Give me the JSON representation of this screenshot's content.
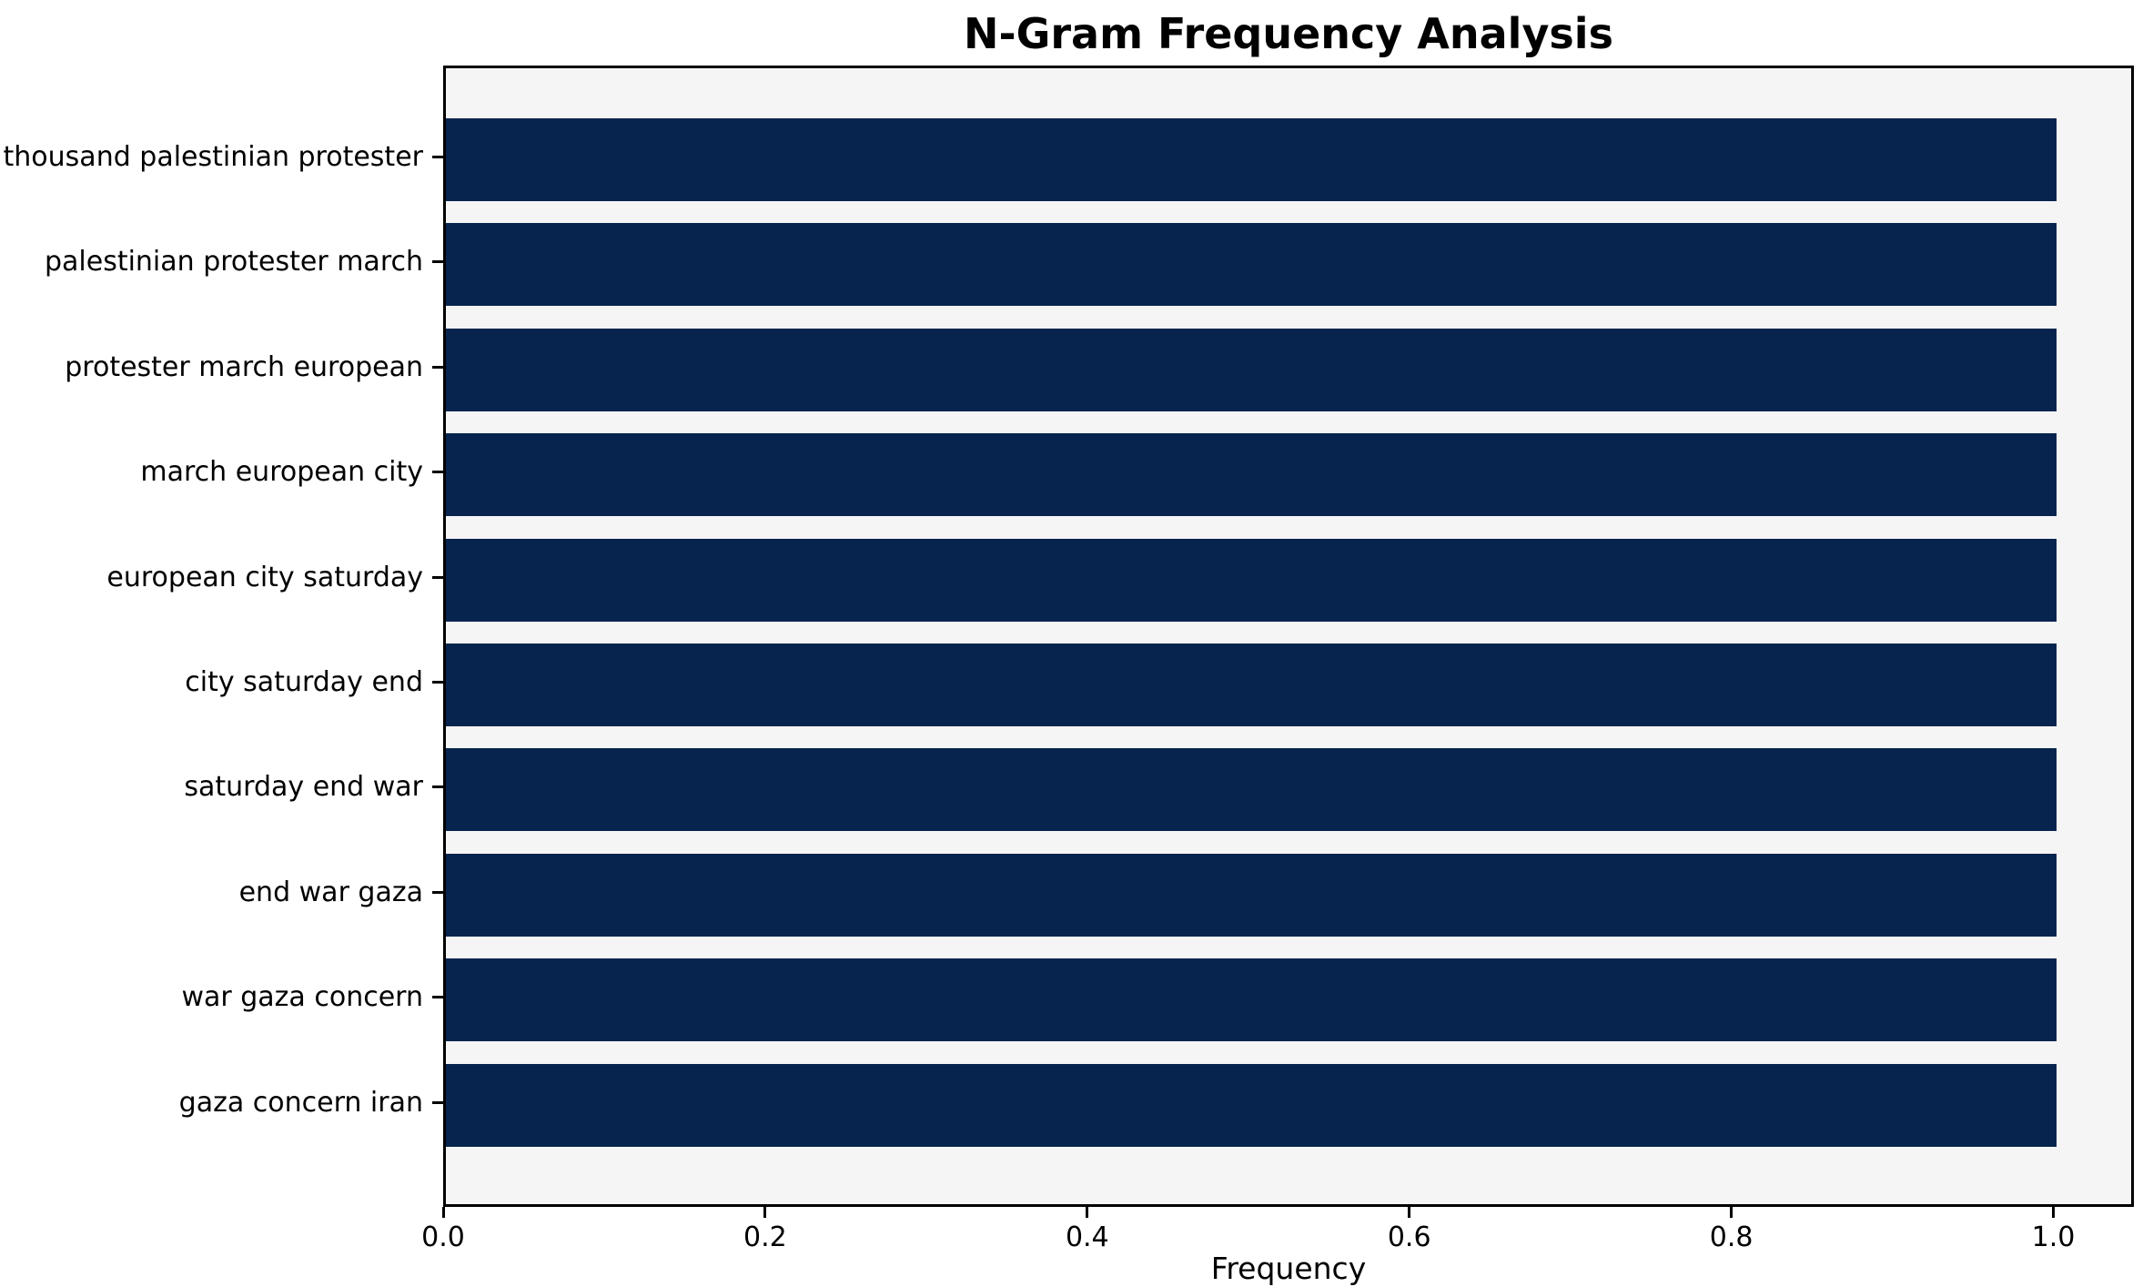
{
  "chart_data": {
    "type": "bar",
    "orientation": "horizontal",
    "title": "N-Gram Frequency Analysis",
    "xlabel": "Frequency",
    "ylabel": "",
    "categories": [
      "thousand palestinian protester",
      "palestinian protester march",
      "protester march european",
      "march european city",
      "european city saturday",
      "city saturday end",
      "saturday end war",
      "end war gaza",
      "war gaza concern",
      "gaza concern iran"
    ],
    "values": [
      1.0,
      1.0,
      1.0,
      1.0,
      1.0,
      1.0,
      1.0,
      1.0,
      1.0,
      1.0
    ],
    "xlim": [
      0,
      1.05
    ],
    "xticks": [
      "0.0",
      "0.2",
      "0.4",
      "0.6",
      "0.8",
      "1.0"
    ],
    "xtick_values": [
      0.0,
      0.2,
      0.4,
      0.6,
      0.8,
      1.0
    ],
    "grid": false,
    "legend": null,
    "colors": {
      "bar": "#06244e",
      "plot_background": "#f5f5f5",
      "figure_background": "#ffffff",
      "spine": "#000000",
      "text": "#000000"
    }
  }
}
